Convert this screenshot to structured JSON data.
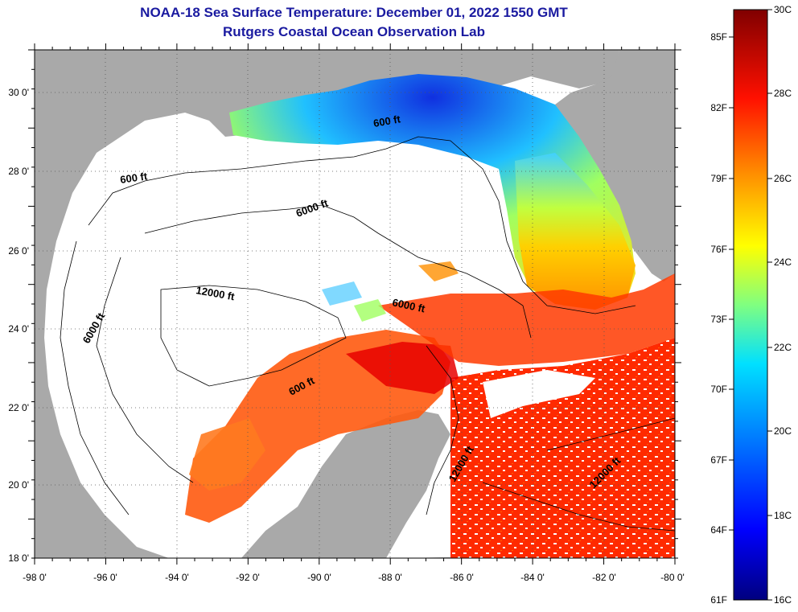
{
  "title_line1": "NOAA-18 Sea Surface Temperature:  December 01, 2022 1550 GMT",
  "title_line2": "Rutgers Coastal Ocean Observation Lab",
  "longitude_ticks": [
    "-98 0'",
    "-96 0'",
    "-94 0'",
    "-92 0'",
    "-90 0'",
    "-88 0'",
    "-86 0'",
    "-84 0'",
    "-82 0'",
    "-80 0'"
  ],
  "latitude_ticks": [
    "30 0'",
    "28 0'",
    "26 0'",
    "24 0'",
    "22 0'",
    "20 0'",
    "18 0'"
  ],
  "contour_labels": [
    "600 ft",
    "600 ft",
    "6000 ft",
    "12000 ft",
    "6000 ft",
    "6000 ft",
    "600 ft",
    "12000 ft",
    "12000 ft"
  ],
  "colorbar": {
    "fahrenheit_labels": [
      "85F",
      "82F",
      "79F",
      "76F",
      "73F",
      "70F",
      "67F",
      "64F",
      "61F"
    ],
    "celsius_labels": [
      "30C",
      "28C",
      "26C",
      "24C",
      "22C",
      "20C",
      "18C",
      "16C"
    ]
  },
  "colors": {
    "land": "#a9a9a9",
    "cloud": "#ffffff",
    "title": "#1a1aa0"
  }
}
